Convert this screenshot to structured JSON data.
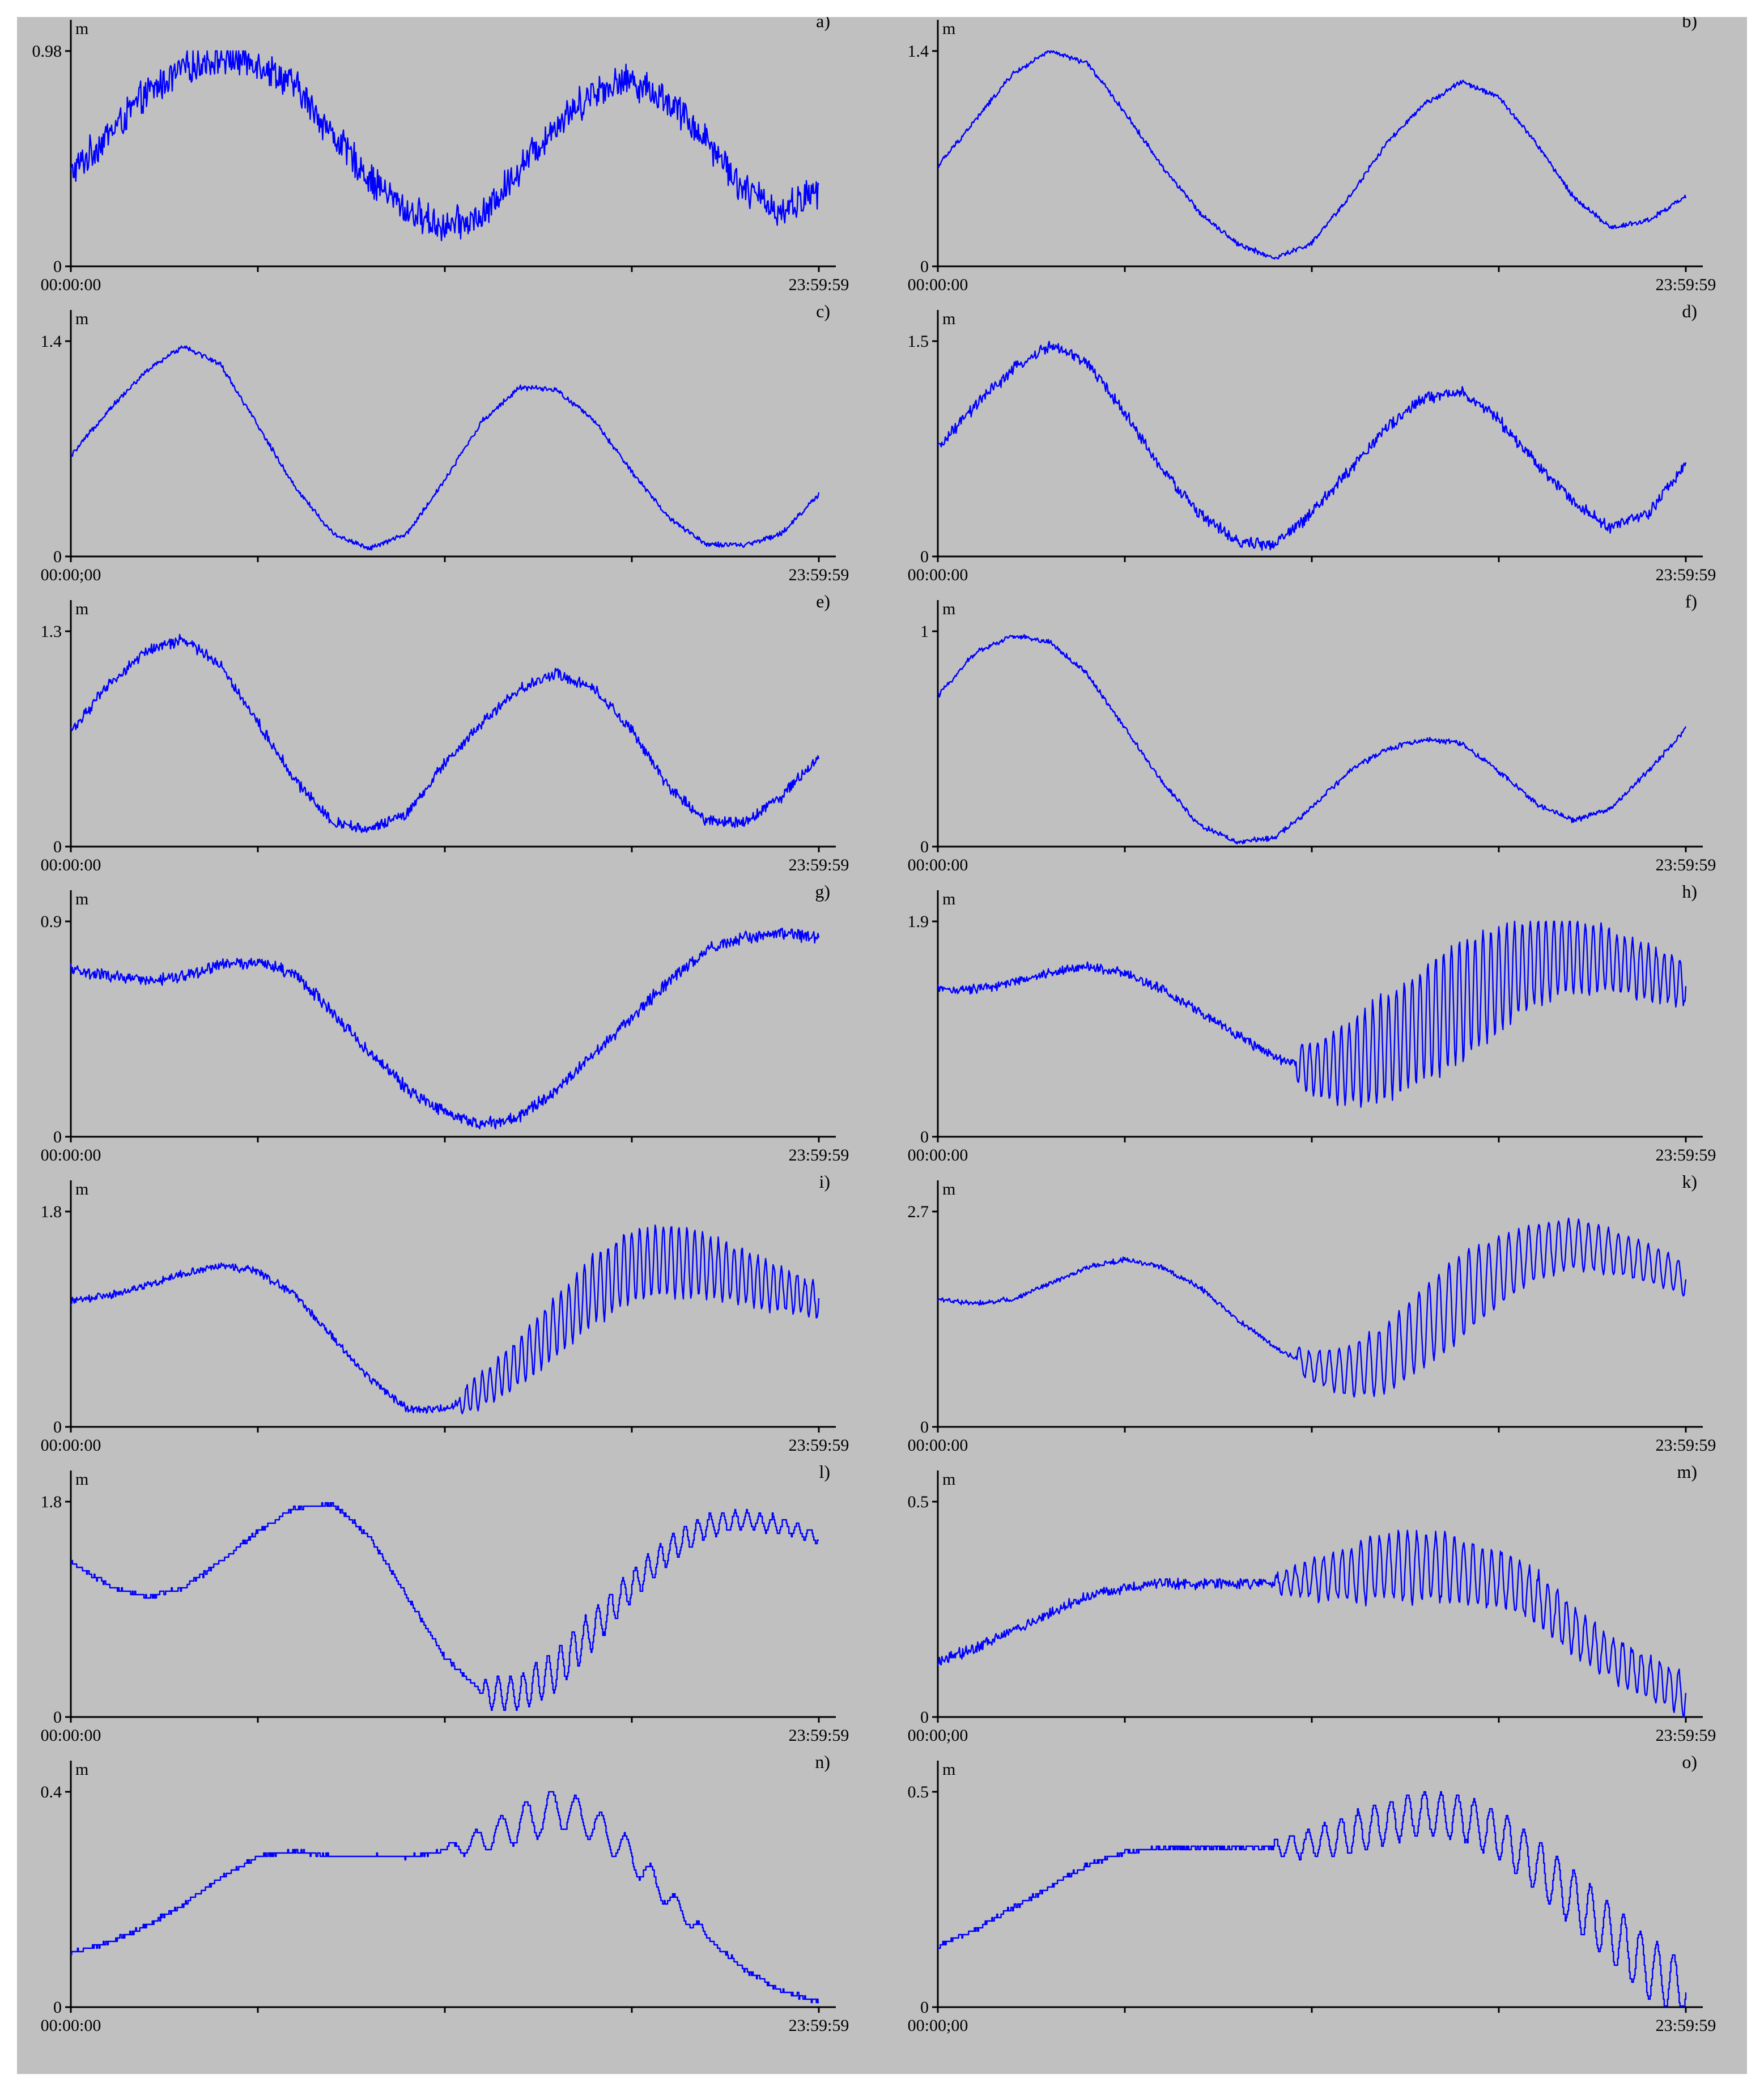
{
  "colors": {
    "background": "#c0c0c0",
    "line": "#0000ff",
    "axis": "#000000"
  },
  "chart_data": [
    {
      "type": "line",
      "panel_label": "a)",
      "ylabel": "m",
      "ylim": [
        0,
        0.98
      ],
      "y_ticks": [
        "0",
        "0.98"
      ],
      "x_ticks": [
        "00:00:00",
        "23:59:59"
      ],
      "noise": 0.09,
      "steps": false,
      "x": [
        0,
        0.05,
        0.1,
        0.15,
        0.2,
        0.25,
        0.3,
        0.35,
        0.4,
        0.45,
        0.5,
        0.55,
        0.6,
        0.65,
        0.7,
        0.75,
        0.8,
        0.85,
        0.9,
        0.95,
        1.0
      ],
      "values": [
        0.42,
        0.6,
        0.78,
        0.9,
        0.95,
        0.93,
        0.82,
        0.6,
        0.4,
        0.25,
        0.18,
        0.22,
        0.45,
        0.65,
        0.8,
        0.85,
        0.75,
        0.58,
        0.35,
        0.25,
        0.35
      ]
    },
    {
      "type": "line",
      "panel_label": "b)",
      "ylabel": "m",
      "ylim": [
        0,
        1.4
      ],
      "y_ticks": [
        "0",
        "1.4"
      ],
      "x_ticks": [
        "00:00:00",
        "23:59:59"
      ],
      "noise": 0.02,
      "steps": false,
      "x": [
        0,
        0.05,
        0.1,
        0.15,
        0.2,
        0.25,
        0.3,
        0.35,
        0.4,
        0.45,
        0.5,
        0.55,
        0.6,
        0.65,
        0.7,
        0.75,
        0.8,
        0.85,
        0.9,
        0.95,
        1.0
      ],
      "values": [
        0.65,
        0.95,
        1.25,
        1.4,
        1.32,
        1.0,
        0.65,
        0.35,
        0.15,
        0.05,
        0.15,
        0.45,
        0.8,
        1.05,
        1.2,
        1.1,
        0.8,
        0.45,
        0.25,
        0.3,
        0.45
      ]
    },
    {
      "type": "line",
      "panel_label": "c)",
      "ylabel": "m",
      "ylim": [
        0,
        1.4
      ],
      "y_ticks": [
        "0",
        "1.4"
      ],
      "x_ticks": [
        "00:00;00",
        "23:59:59"
      ],
      "noise": 0.02,
      "steps": false,
      "x": [
        0,
        0.05,
        0.1,
        0.15,
        0.2,
        0.25,
        0.3,
        0.35,
        0.4,
        0.45,
        0.5,
        0.55,
        0.6,
        0.65,
        0.7,
        0.75,
        0.8,
        0.85,
        0.9,
        0.95,
        1.0
      ],
      "values": [
        0.65,
        0.95,
        1.2,
        1.37,
        1.25,
        0.85,
        0.45,
        0.15,
        0.05,
        0.15,
        0.5,
        0.88,
        1.1,
        1.08,
        0.88,
        0.55,
        0.25,
        0.08,
        0.07,
        0.15,
        0.4
      ]
    },
    {
      "type": "line",
      "panel_label": "d)",
      "ylabel": "m",
      "ylim": [
        0,
        1.5
      ],
      "y_ticks": [
        "0",
        "1.5"
      ],
      "x_ticks": [
        "00:00:00",
        "23:59:59"
      ],
      "noise": 0.05,
      "steps": false,
      "x": [
        0,
        0.05,
        0.1,
        0.15,
        0.2,
        0.25,
        0.3,
        0.35,
        0.4,
        0.45,
        0.5,
        0.55,
        0.6,
        0.65,
        0.7,
        0.75,
        0.8,
        0.85,
        0.9,
        0.95,
        1.0
      ],
      "values": [
        0.75,
        1.05,
        1.3,
        1.47,
        1.35,
        1.0,
        0.6,
        0.3,
        0.1,
        0.08,
        0.3,
        0.6,
        0.9,
        1.1,
        1.15,
        0.95,
        0.65,
        0.38,
        0.2,
        0.3,
        0.65
      ]
    },
    {
      "type": "line",
      "panel_label": "e)",
      "ylabel": "m",
      "ylim": [
        0,
        1.3
      ],
      "y_ticks": [
        "0",
        "1.3"
      ],
      "x_ticks": [
        "00:00:00",
        "23:59:59"
      ],
      "noise": 0.04,
      "steps": false,
      "x": [
        0,
        0.05,
        0.1,
        0.15,
        0.2,
        0.25,
        0.3,
        0.35,
        0.4,
        0.45,
        0.5,
        0.55,
        0.6,
        0.65,
        0.7,
        0.75,
        0.8,
        0.85,
        0.9,
        0.95,
        1.0
      ],
      "values": [
        0.7,
        0.97,
        1.18,
        1.25,
        1.1,
        0.75,
        0.4,
        0.15,
        0.1,
        0.2,
        0.5,
        0.75,
        0.95,
        1.05,
        0.95,
        0.7,
        0.35,
        0.15,
        0.15,
        0.3,
        0.55
      ]
    },
    {
      "type": "line",
      "panel_label": "f)",
      "ylabel": "m",
      "ylim": [
        0,
        1
      ],
      "y_ticks": [
        "0",
        "1"
      ],
      "x_ticks": [
        "00:00:00",
        "23:59:59"
      ],
      "noise": 0.015,
      "steps": false,
      "x": [
        0,
        0.05,
        0.1,
        0.15,
        0.2,
        0.25,
        0.3,
        0.35,
        0.4,
        0.45,
        0.5,
        0.55,
        0.6,
        0.65,
        0.7,
        0.75,
        0.8,
        0.85,
        0.9,
        0.95,
        1.0
      ],
      "values": [
        0.7,
        0.9,
        0.98,
        0.95,
        0.8,
        0.55,
        0.3,
        0.1,
        0.02,
        0.04,
        0.18,
        0.35,
        0.45,
        0.5,
        0.48,
        0.35,
        0.2,
        0.12,
        0.18,
        0.35,
        0.55
      ]
    },
    {
      "type": "line",
      "panel_label": "g)",
      "ylabel": "m",
      "ylim": [
        0,
        0.9
      ],
      "y_ticks": [
        "0",
        "0.9"
      ],
      "x_ticks": [
        "00:00:00",
        "23:59:59"
      ],
      "noise": 0.03,
      "steps": false,
      "x": [
        0,
        0.05,
        0.1,
        0.15,
        0.2,
        0.25,
        0.3,
        0.35,
        0.4,
        0.45,
        0.5,
        0.55,
        0.6,
        0.65,
        0.7,
        0.75,
        0.8,
        0.85,
        0.9,
        0.95,
        1.0
      ],
      "values": [
        0.7,
        0.67,
        0.65,
        0.67,
        0.72,
        0.73,
        0.68,
        0.52,
        0.35,
        0.2,
        0.1,
        0.05,
        0.08,
        0.2,
        0.35,
        0.5,
        0.65,
        0.78,
        0.83,
        0.85,
        0.83
      ]
    },
    {
      "type": "line",
      "panel_label": "h)",
      "ylabel": "m",
      "ylim": [
        0,
        1.9
      ],
      "y_ticks": [
        "0",
        "1.9"
      ],
      "x_ticks": [
        "00:00:00",
        "23:59:59"
      ],
      "noise": 0.05,
      "steps": false,
      "x": [
        0,
        0.05,
        0.1,
        0.15,
        0.2,
        0.25,
        0.3,
        0.35,
        0.4,
        0.45,
        0.5,
        0.55,
        0.6,
        0.65,
        0.7,
        0.75,
        0.8,
        0.85,
        0.9,
        0.95,
        1.0
      ],
      "values": [
        1.3,
        1.3,
        1.36,
        1.45,
        1.5,
        1.45,
        1.3,
        1.1,
        0.9,
        0.7,
        0.6,
        0.65,
        0.8,
        1.0,
        1.2,
        1.4,
        1.55,
        1.6,
        1.55,
        1.45,
        1.35
      ],
      "osc": {
        "start": 0.48,
        "end": 1.0,
        "amp": [
          0.18,
          0.45,
          0.55,
          0.4,
          0.28,
          0.2
        ],
        "freq": 95
      }
    },
    {
      "type": "line",
      "panel_label": "i)",
      "ylabel": "m",
      "ylim": [
        0,
        1.8
      ],
      "y_ticks": [
        "0",
        "1.8"
      ],
      "x_ticks": [
        "00:00:00",
        "23:59:59"
      ],
      "noise": 0.04,
      "steps": false,
      "x": [
        0,
        0.05,
        0.1,
        0.15,
        0.2,
        0.25,
        0.3,
        0.35,
        0.4,
        0.45,
        0.5,
        0.55,
        0.6,
        0.65,
        0.7,
        0.75,
        0.8,
        0.85,
        0.9,
        0.95,
        1.0
      ],
      "values": [
        1.05,
        1.1,
        1.18,
        1.28,
        1.35,
        1.3,
        1.1,
        0.75,
        0.4,
        0.15,
        0.15,
        0.3,
        0.55,
        0.85,
        1.15,
        1.35,
        1.4,
        1.35,
        1.25,
        1.15,
        1.05
      ],
      "osc": {
        "start": 0.52,
        "end": 1.0,
        "amp": [
          0.1,
          0.22,
          0.3,
          0.3,
          0.22,
          0.14
        ],
        "freq": 95
      }
    },
    {
      "type": "line",
      "panel_label": "k)",
      "ylabel": "m",
      "ylim": [
        0,
        2.7
      ],
      "y_ticks": [
        "0",
        "2.7"
      ],
      "x_ticks": [
        "00:00:00",
        "23:59:59"
      ],
      "noise": 0.04,
      "steps": false,
      "x": [
        0,
        0.05,
        0.1,
        0.15,
        0.2,
        0.25,
        0.3,
        0.35,
        0.4,
        0.45,
        0.5,
        0.55,
        0.6,
        0.65,
        0.7,
        0.75,
        0.8,
        0.85,
        0.9,
        0.95,
        1.0
      ],
      "values": [
        1.6,
        1.55,
        1.6,
        1.8,
        2.0,
        2.1,
        2.0,
        1.75,
        1.35,
        1.0,
        0.75,
        0.7,
        0.85,
        1.25,
        1.65,
        1.95,
        2.2,
        2.3,
        2.2,
        2.05,
        1.85
      ],
      "osc": {
        "start": 0.48,
        "end": 1.0,
        "amp": [
          0.15,
          0.4,
          0.55,
          0.35,
          0.28,
          0.2
        ],
        "freq": 75
      }
    },
    {
      "type": "line",
      "panel_label": "l)",
      "ylabel": "m",
      "ylim": [
        0,
        1.8
      ],
      "y_ticks": [
        "0",
        "1.8"
      ],
      "x_ticks": [
        "00:00:00",
        "23:59:59"
      ],
      "noise": 0.02,
      "steps": true,
      "x": [
        0,
        0.05,
        0.1,
        0.15,
        0.2,
        0.25,
        0.3,
        0.35,
        0.4,
        0.45,
        0.5,
        0.55,
        0.6,
        0.65,
        0.7,
        0.75,
        0.8,
        0.85,
        0.9,
        0.95,
        1.0
      ],
      "values": [
        1.3,
        1.1,
        1.0,
        1.08,
        1.3,
        1.55,
        1.75,
        1.78,
        1.5,
        1.0,
        0.5,
        0.2,
        0.2,
        0.4,
        0.75,
        1.1,
        1.4,
        1.6,
        1.65,
        1.6,
        1.5
      ],
      "osc": {
        "start": 0.55,
        "end": 1.0,
        "amp": [
          0.12,
          0.18,
          0.12,
          0.08,
          0.05
        ],
        "freq": 60
      }
    },
    {
      "type": "line",
      "panel_label": "m)",
      "ylabel": "m",
      "ylim": [
        0,
        0.5
      ],
      "y_ticks": [
        "0",
        "0.5"
      ],
      "x_ticks": [
        "00:00;00",
        "23:59:59"
      ],
      "noise": 0.015,
      "steps": false,
      "x": [
        0,
        0.05,
        0.1,
        0.15,
        0.2,
        0.25,
        0.3,
        0.35,
        0.4,
        0.45,
        0.5,
        0.55,
        0.6,
        0.65,
        0.7,
        0.75,
        0.8,
        0.85,
        0.9,
        0.95,
        1.0
      ],
      "values": [
        0.13,
        0.16,
        0.2,
        0.24,
        0.28,
        0.3,
        0.31,
        0.31,
        0.31,
        0.31,
        0.32,
        0.33,
        0.35,
        0.35,
        0.34,
        0.32,
        0.28,
        0.2,
        0.14,
        0.09,
        0.05
      ],
      "osc": {
        "start": 0.45,
        "end": 1.0,
        "amp": [
          0.02,
          0.07,
          0.08,
          0.06,
          0.05,
          0.05
        ],
        "freq": 80
      }
    },
    {
      "type": "line",
      "panel_label": "n)",
      "ylabel": "m",
      "ylim": [
        0,
        0.4
      ],
      "y_ticks": [
        "0",
        "0.4"
      ],
      "x_ticks": [
        "00:00:00",
        "23:59:59"
      ],
      "noise": 0.004,
      "steps": true,
      "x": [
        0,
        0.05,
        0.1,
        0.15,
        0.2,
        0.25,
        0.3,
        0.35,
        0.4,
        0.45,
        0.5,
        0.55,
        0.6,
        0.65,
        0.7,
        0.75,
        0.8,
        0.85,
        0.9,
        0.95,
        1.0
      ],
      "values": [
        0.1,
        0.12,
        0.15,
        0.19,
        0.24,
        0.28,
        0.29,
        0.28,
        0.28,
        0.28,
        0.29,
        0.31,
        0.34,
        0.37,
        0.34,
        0.28,
        0.2,
        0.13,
        0.07,
        0.03,
        0.01
      ],
      "osc": {
        "start": 0.5,
        "end": 0.85,
        "amp": [
          0.01,
          0.04,
          0.03,
          0.01
        ],
        "freq": 30
      }
    },
    {
      "type": "line",
      "panel_label": "o)",
      "ylabel": "m",
      "ylim": [
        0,
        0.5
      ],
      "y_ticks": [
        "0",
        "0.5"
      ],
      "x_ticks": [
        "00:00;00",
        "23:59:59"
      ],
      "noise": 0.006,
      "steps": true,
      "x": [
        0,
        0.05,
        0.1,
        0.15,
        0.2,
        0.25,
        0.3,
        0.35,
        0.4,
        0.45,
        0.5,
        0.55,
        0.6,
        0.65,
        0.7,
        0.75,
        0.8,
        0.85,
        0.9,
        0.95,
        1.0
      ],
      "values": [
        0.14,
        0.18,
        0.23,
        0.28,
        0.33,
        0.36,
        0.37,
        0.37,
        0.37,
        0.37,
        0.38,
        0.4,
        0.43,
        0.45,
        0.44,
        0.4,
        0.33,
        0.25,
        0.17,
        0.09,
        0.04
      ],
      "osc": {
        "start": 0.45,
        "end": 1.0,
        "amp": [
          0.02,
          0.05,
          0.05,
          0.06,
          0.07,
          0.07
        ],
        "freq": 45
      }
    }
  ]
}
